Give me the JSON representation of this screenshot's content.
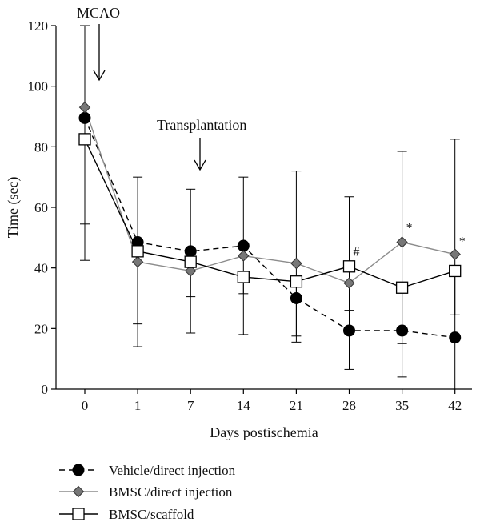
{
  "chart_data": {
    "type": "line",
    "xlabel": "Days postischemia",
    "ylabel": "Time (sec)",
    "categories": [
      "0",
      "1",
      "7",
      "14",
      "21",
      "28",
      "35",
      "42"
    ],
    "ylim": [
      0,
      120
    ],
    "yticks": [
      "0",
      "20",
      "40",
      "60",
      "80",
      "100",
      "120"
    ],
    "grid": false,
    "legend_position": "bottom-left",
    "series": [
      {
        "name": "Vehicle/direct injection",
        "marker": "circle",
        "line_style": "dashed",
        "color": "#000000",
        "values": [
          89.5,
          48.5,
          45.5,
          47.3,
          30.0,
          19.3,
          19.3,
          17.0
        ],
        "err_upper": [
          120,
          70,
          66,
          70,
          72,
          63.5,
          78.5,
          82.5
        ],
        "err_lower": [
          54.5,
          21.5,
          18.5,
          18.0,
          15.5,
          6.5,
          4.0,
          0
        ]
      },
      {
        "name": "BMSC/direct injection",
        "marker": "diamond",
        "line_style": "solid",
        "color": "#8c8c8c",
        "values": [
          93.0,
          42.0,
          39.0,
          44.0,
          41.5,
          35.0,
          48.5,
          44.5
        ],
        "err_upper": [],
        "err_lower": []
      },
      {
        "name": "BMSC/scaffold",
        "marker": "square",
        "line_style": "solid",
        "color": "#000000",
        "values": [
          82.5,
          45.5,
          42.0,
          37.0,
          35.5,
          40.5,
          33.5,
          39.0
        ],
        "err_upper": [],
        "err_lower": [
          42.5,
          14.0,
          30.5,
          31.5,
          17.5,
          26.0,
          15.0,
          24.5
        ]
      }
    ],
    "annotations": [
      {
        "text": "MCAO"
      },
      {
        "text": "Transplantation"
      },
      {
        "text": "#",
        "category": "28",
        "value": 44
      },
      {
        "text": "*",
        "category": "35",
        "value": 52
      },
      {
        "text": "*",
        "category": "42",
        "value": 47.5
      }
    ]
  }
}
